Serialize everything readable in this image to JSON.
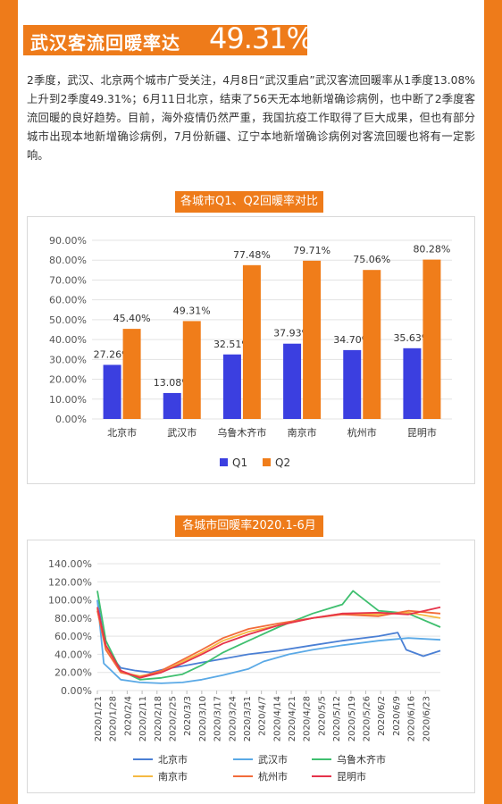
{
  "header": {
    "title_prefix": "武汉客流回暖率达",
    "title_value": "49.31%"
  },
  "body_text": "2季度，武汉、北京两个城市广受关注，4月8日“武汉重启”武汉客流回暖率从1季度13.08%上升到2季度49.31%；6月11日北京，结束了56天无本地新增确诊病例，也中断了2季度客流回暖的良好趋势。目前，海外疫情仍然严重，我国抗疫工作取得了巨大成果，但也有部分城市出现本地新增确诊病例，7月份新疆、辽宁本地新增确诊病例对客流回暖也将有一定影响。",
  "colors": {
    "accent": "#ee7b1a",
    "q1": "#3b3fe0",
    "q2": "#f07d1a"
  },
  "chart_data": [
    {
      "type": "bar",
      "title": "各城市Q1、Q2回暖率对比",
      "categories": [
        "北京市",
        "武汉市",
        "乌鲁木齐市",
        "南京市",
        "杭州市",
        "昆明市"
      ],
      "series": [
        {
          "name": "Q1",
          "values": [
            27.26,
            13.08,
            32.51,
            37.93,
            34.7,
            35.63
          ],
          "labels": [
            "27.26%",
            "13.08%",
            "32.51%",
            "37.93%",
            "34.70%",
            "35.63%"
          ]
        },
        {
          "name": "Q2",
          "values": [
            45.4,
            49.31,
            77.48,
            79.71,
            75.06,
            80.28
          ],
          "labels": [
            "45.40%",
            "49.31%",
            "77.48%",
            "79.71%",
            "75.06%",
            "80.28%"
          ]
        }
      ],
      "yticks": [
        "0.00%",
        "10.00%",
        "20.00%",
        "30.00%",
        "40.00%",
        "50.00%",
        "60.00%",
        "70.00%",
        "80.00%",
        "90.00%"
      ],
      "ylim": [
        0,
        90
      ],
      "grid": true,
      "legend": "bottom"
    },
    {
      "type": "line",
      "title": "各城市回暖率2020.1-6月",
      "x_start": "2020/1/21",
      "x_end": "2020/6/30",
      "xticks": [
        "2020/1/21",
        "2020/1/28",
        "2020/2/4",
        "2020/2/11",
        "2020/2/18",
        "2020/2/25",
        "2020/3/3",
        "2020/3/10",
        "2020/3/17",
        "2020/3/24",
        "2020/3/31",
        "2020/4/7",
        "2020/4/14",
        "2020/4/21",
        "2020/4/28",
        "2020/5/5",
        "2020/5/12",
        "2020/5/19",
        "2020/5/26",
        "2020/6/2",
        "2020/6/9",
        "2020/6/16",
        "2020/6/23"
      ],
      "yticks": [
        "0.00%",
        "20.00%",
        "40.00%",
        "60.00%",
        "80.00%",
        "100.00%",
        "120.00%",
        "140.00%"
      ],
      "ylim": [
        0,
        140
      ],
      "legend": "bottom",
      "series": [
        {
          "name": "北京市",
          "color": "#4a7fd4",
          "points": [
            [
              "2020/1/21",
              100
            ],
            [
              "2020/1/25",
              45
            ],
            [
              "2020/2/1",
              25
            ],
            [
              "2020/2/8",
              22
            ],
            [
              "2020/2/15",
              20
            ],
            [
              "2020/2/22",
              24
            ],
            [
              "2020/3/1",
              27
            ],
            [
              "2020/3/10",
              31
            ],
            [
              "2020/3/20",
              35
            ],
            [
              "2020/4/1",
              40
            ],
            [
              "2020/4/15",
              44
            ],
            [
              "2020/5/1",
              50
            ],
            [
              "2020/5/15",
              55
            ],
            [
              "2020/6/1",
              60
            ],
            [
              "2020/6/10",
              64
            ],
            [
              "2020/6/14",
              45
            ],
            [
              "2020/6/22",
              38
            ],
            [
              "2020/6/30",
              44
            ]
          ]
        },
        {
          "name": "武汉市",
          "color": "#5aa9e6",
          "points": [
            [
              "2020/1/21",
              100
            ],
            [
              "2020/1/24",
              30
            ],
            [
              "2020/2/1",
              12
            ],
            [
              "2020/2/10",
              9
            ],
            [
              "2020/2/20",
              8
            ],
            [
              "2020/3/1",
              9
            ],
            [
              "2020/3/10",
              12
            ],
            [
              "2020/3/20",
              17
            ],
            [
              "2020/4/1",
              24
            ],
            [
              "2020/4/8",
              32
            ],
            [
              "2020/4/20",
              40
            ],
            [
              "2020/5/1",
              45
            ],
            [
              "2020/5/15",
              50
            ],
            [
              "2020/6/1",
              55
            ],
            [
              "2020/6/15",
              58
            ],
            [
              "2020/6/30",
              56
            ]
          ]
        },
        {
          "name": "乌鲁木齐市",
          "color": "#3fbf6f",
          "points": [
            [
              "2020/1/21",
              110
            ],
            [
              "2020/1/25",
              55
            ],
            [
              "2020/2/1",
              22
            ],
            [
              "2020/2/10",
              12
            ],
            [
              "2020/2/20",
              14
            ],
            [
              "2020/3/1",
              18
            ],
            [
              "2020/3/10",
              28
            ],
            [
              "2020/3/20",
              42
            ],
            [
              "2020/4/1",
              55
            ],
            [
              "2020/4/15",
              70
            ],
            [
              "2020/5/1",
              85
            ],
            [
              "2020/5/15",
              95
            ],
            [
              "2020/5/20",
              110
            ],
            [
              "2020/6/1",
              88
            ],
            [
              "2020/6/15",
              85
            ],
            [
              "2020/6/30",
              70
            ]
          ]
        },
        {
          "name": "南京市",
          "color": "#f5b942",
          "points": [
            [
              "2020/1/21",
              90
            ],
            [
              "2020/1/25",
              48
            ],
            [
              "2020/2/1",
              20
            ],
            [
              "2020/2/10",
              16
            ],
            [
              "2020/2/20",
              20
            ],
            [
              "2020/3/1",
              32
            ],
            [
              "2020/3/10",
              42
            ],
            [
              "2020/3/20",
              55
            ],
            [
              "2020/4/1",
              65
            ],
            [
              "2020/4/15",
              72
            ],
            [
              "2020/5/1",
              80
            ],
            [
              "2020/5/15",
              85
            ],
            [
              "2020/6/1",
              84
            ],
            [
              "2020/6/15",
              86
            ],
            [
              "2020/6/30",
              80
            ]
          ]
        },
        {
          "name": "杭州市",
          "color": "#f26b3a",
          "points": [
            [
              "2020/1/21",
              88
            ],
            [
              "2020/1/25",
              45
            ],
            [
              "2020/2/1",
              20
            ],
            [
              "2020/2/10",
              15
            ],
            [
              "2020/2/20",
              22
            ],
            [
              "2020/3/1",
              34
            ],
            [
              "2020/3/10",
              45
            ],
            [
              "2020/3/20",
              58
            ],
            [
              "2020/4/1",
              68
            ],
            [
              "2020/4/15",
              74
            ],
            [
              "2020/5/1",
              80
            ],
            [
              "2020/5/15",
              84
            ],
            [
              "2020/6/1",
              82
            ],
            [
              "2020/6/15",
              88
            ],
            [
              "2020/6/30",
              85
            ]
          ]
        },
        {
          "name": "昆明市",
          "color": "#e6334a",
          "points": [
            [
              "2020/1/21",
              92
            ],
            [
              "2020/1/25",
              50
            ],
            [
              "2020/2/1",
              22
            ],
            [
              "2020/2/10",
              14
            ],
            [
              "2020/2/20",
              20
            ],
            [
              "2020/3/1",
              30
            ],
            [
              "2020/3/10",
              40
            ],
            [
              "2020/3/20",
              52
            ],
            [
              "2020/4/1",
              62
            ],
            [
              "2020/4/15",
              72
            ],
            [
              "2020/5/1",
              80
            ],
            [
              "2020/5/15",
              85
            ],
            [
              "2020/6/1",
              86
            ],
            [
              "2020/6/15",
              84
            ],
            [
              "2020/6/30",
              92
            ]
          ]
        }
      ]
    }
  ]
}
